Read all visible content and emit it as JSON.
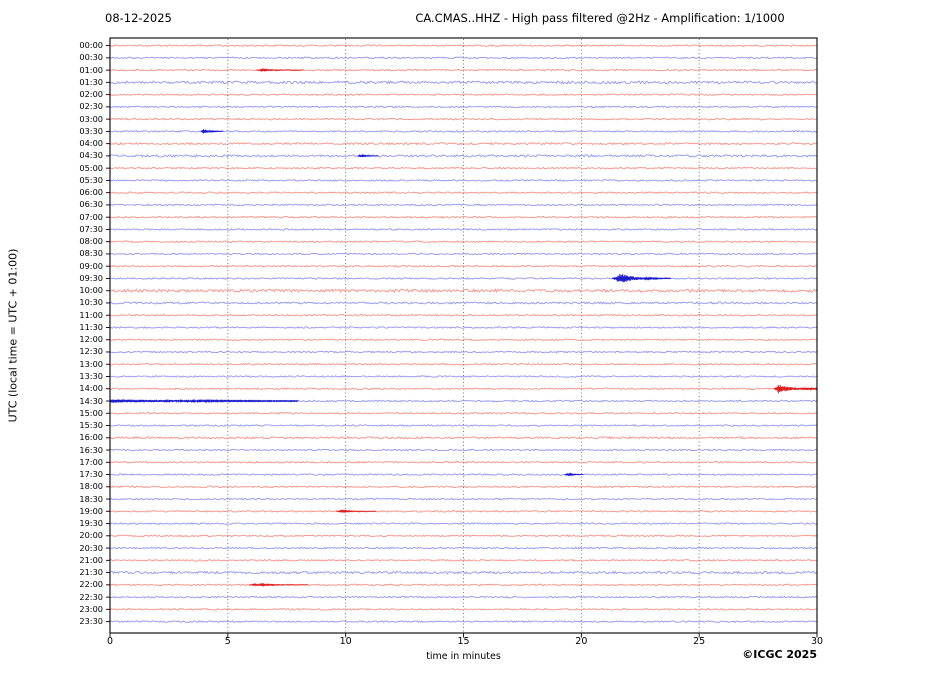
{
  "header": {
    "date": "08-12-2025",
    "title": "CA.CMAS..HHZ - High pass filtered @2Hz - Amplification: 1/1000"
  },
  "footer": {
    "copyright": "©ICGC 2025"
  },
  "chart_data": {
    "type": "line",
    "subtype": "helicorder-seismogram",
    "date": "08-12-2025",
    "title": "CA.CMAS..HHZ - High pass filtered @2Hz - Amplification: 1/1000",
    "xlabel": "time in minutes",
    "ylabel": "UTC (local time = UTC + 01:00)",
    "xlim": [
      0,
      30
    ],
    "x_ticks": [
      0,
      5,
      10,
      15,
      20,
      25,
      30
    ],
    "grid_minutes": [
      5,
      10,
      15,
      20,
      25
    ],
    "minutes_per_row": 30,
    "legend": "rows on the hour are red, rows on the half hour are blue",
    "colors": {
      "trace_red": "#f4897e",
      "trace_blue": "#8d8def",
      "event_red": "#dd1414",
      "event_blue": "#1414cc",
      "grid": "#5a5a5a",
      "axis": "#000000"
    },
    "rows": [
      {
        "label": "00:00",
        "color": "red"
      },
      {
        "label": "00:30",
        "color": "blue"
      },
      {
        "label": "01:00",
        "color": "red",
        "events": [
          {
            "start": 6.2,
            "end": 8.2,
            "amp": 0.8
          }
        ]
      },
      {
        "label": "01:30",
        "color": "blue",
        "noise": 1.3
      },
      {
        "label": "02:00",
        "color": "red"
      },
      {
        "label": "02:30",
        "color": "blue"
      },
      {
        "label": "03:00",
        "color": "red"
      },
      {
        "label": "03:30",
        "color": "blue",
        "events": [
          {
            "start": 3.85,
            "end": 4.8,
            "amp": 2.6
          }
        ]
      },
      {
        "label": "04:00",
        "color": "red",
        "noise": 1.0
      },
      {
        "label": "04:30",
        "color": "blue",
        "noise": 1.1,
        "events": [
          {
            "start": 10.5,
            "end": 11.4,
            "amp": 1.2
          }
        ]
      },
      {
        "label": "05:00",
        "color": "red"
      },
      {
        "label": "05:30",
        "color": "blue"
      },
      {
        "label": "06:00",
        "color": "red"
      },
      {
        "label": "06:30",
        "color": "blue"
      },
      {
        "label": "07:00",
        "color": "red"
      },
      {
        "label": "07:30",
        "color": "blue"
      },
      {
        "label": "08:00",
        "color": "red"
      },
      {
        "label": "08:30",
        "color": "blue"
      },
      {
        "label": "09:00",
        "color": "red"
      },
      {
        "label": "09:30",
        "color": "blue",
        "events": [
          {
            "start": 21.3,
            "end": 23.8,
            "amp": 5.5
          }
        ]
      },
      {
        "label": "10:00",
        "color": "red",
        "noise": 1.4
      },
      {
        "label": "10:30",
        "color": "blue",
        "noise": 1.0
      },
      {
        "label": "11:00",
        "color": "red"
      },
      {
        "label": "11:30",
        "color": "blue"
      },
      {
        "label": "12:00",
        "color": "red"
      },
      {
        "label": "12:30",
        "color": "blue"
      },
      {
        "label": "13:00",
        "color": "red"
      },
      {
        "label": "13:30",
        "color": "blue"
      },
      {
        "label": "14:00",
        "color": "red",
        "events": [
          {
            "start": 28.15,
            "end": 30,
            "amp": 5.0,
            "sustain": 1.4
          }
        ]
      },
      {
        "label": "14:30",
        "color": "blue",
        "events": [
          {
            "start": 0,
            "end": 8,
            "amp": 1.7,
            "decay": true
          }
        ]
      },
      {
        "label": "15:00",
        "color": "red"
      },
      {
        "label": "15:30",
        "color": "blue"
      },
      {
        "label": "16:00",
        "color": "red",
        "noise": 0.95
      },
      {
        "label": "16:30",
        "color": "blue"
      },
      {
        "label": "17:00",
        "color": "red"
      },
      {
        "label": "17:30",
        "color": "blue",
        "events": [
          {
            "start": 19.3,
            "end": 20.1,
            "amp": 1.4
          }
        ]
      },
      {
        "label": "18:00",
        "color": "red"
      },
      {
        "label": "18:30",
        "color": "blue"
      },
      {
        "label": "19:00",
        "color": "red",
        "events": [
          {
            "start": 9.6,
            "end": 11.3,
            "amp": 0.9
          }
        ]
      },
      {
        "label": "19:30",
        "color": "blue"
      },
      {
        "label": "20:00",
        "color": "red"
      },
      {
        "label": "20:30",
        "color": "blue"
      },
      {
        "label": "21:00",
        "color": "red"
      },
      {
        "label": "21:30",
        "color": "blue",
        "noise": 1.2
      },
      {
        "label": "22:00",
        "color": "red",
        "events": [
          {
            "start": 5.9,
            "end": 8.4,
            "amp": 1.1
          }
        ]
      },
      {
        "label": "22:30",
        "color": "blue"
      },
      {
        "label": "23:00",
        "color": "red"
      },
      {
        "label": "23:30",
        "color": "blue"
      }
    ]
  }
}
